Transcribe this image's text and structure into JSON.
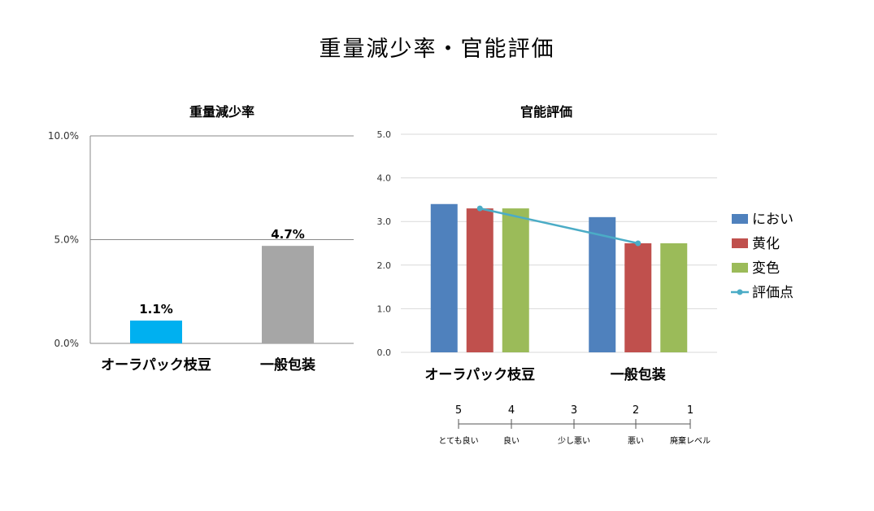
{
  "page_title": "重量減少率・官能評価",
  "chart_data": [
    {
      "type": "bar",
      "title": "重量減少率",
      "categories": [
        "オーラパック枝豆",
        "一般包装"
      ],
      "values": [
        1.1,
        4.7
      ],
      "data_labels": [
        "1.1%",
        "4.7%"
      ],
      "colors": [
        "#00b0f0",
        "#a6a6a6"
      ],
      "yticks": [
        "0.0%",
        "5.0%",
        "10.0%"
      ],
      "ylim": [
        0,
        10
      ],
      "grid": true
    },
    {
      "type": "bar",
      "title": "官能評価",
      "categories": [
        "オーラパック枝豆",
        "一般包装"
      ],
      "yticks": [
        "0.0",
        "1.0",
        "2.0",
        "3.0",
        "4.0",
        "5.0"
      ],
      "ylim": [
        0,
        5
      ],
      "grid": true,
      "legend_position": "right",
      "series": [
        {
          "name": "におい",
          "kind": "bar",
          "color": "#4f81bd",
          "values": [
            3.4,
            3.1
          ]
        },
        {
          "name": "黄化",
          "kind": "bar",
          "color": "#c0504d",
          "values": [
            3.3,
            2.5
          ]
        },
        {
          "name": "変色",
          "kind": "bar",
          "color": "#9bbb59",
          "values": [
            3.3,
            2.5
          ]
        },
        {
          "name": "評価点",
          "kind": "line",
          "color": "#4bacc6",
          "values": [
            3.3,
            2.5
          ]
        }
      ]
    }
  ],
  "rating_scale": {
    "levels": [
      {
        "value": "5",
        "label": "とても良い"
      },
      {
        "value": "4",
        "label": "良い"
      },
      {
        "value": "3",
        "label": "少し悪い"
      },
      {
        "value": "2",
        "label": "悪い"
      },
      {
        "value": "1",
        "label": "廃棄レベル"
      }
    ]
  }
}
